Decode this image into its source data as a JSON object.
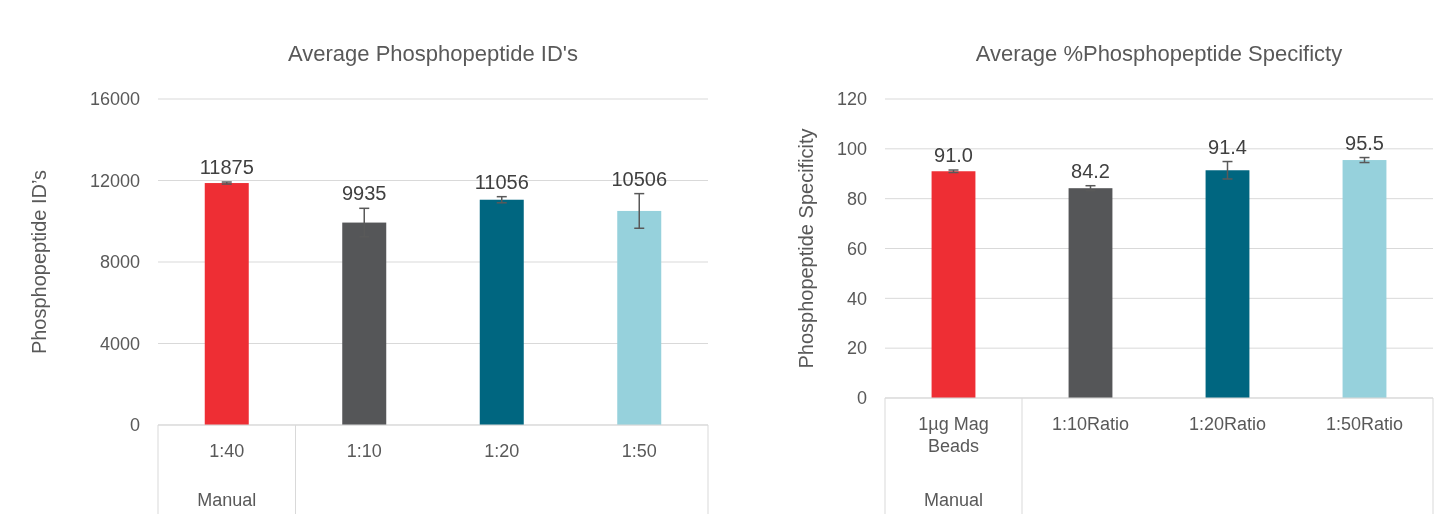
{
  "chart_data": [
    {
      "type": "bar",
      "title": "Average Phosphopeptide ID's",
      "ylabel": "Phosphopeptide ID’s",
      "categories": [
        "1:40",
        "1:10",
        "1:20",
        "1:50"
      ],
      "values": [
        11875,
        9935,
        11056,
        10506
      ],
      "colors": [
        "#ee2e34",
        "#555658",
        "#006680",
        "#96d1dc"
      ],
      "errors": [
        50,
        700,
        150,
        850
      ],
      "data_labels": true,
      "ylim": [
        0,
        16000
      ],
      "yticks": [
        0,
        4000,
        8000,
        12000,
        16000
      ],
      "grid": "y",
      "annotations": [
        "Manual"
      ]
    },
    {
      "type": "bar",
      "title": "Average %Phosphopeptide Specificty",
      "ylabel": "Phosphopeptide Specificity",
      "categories": [
        "1µg Mag Beads",
        "1:10Ratio",
        "1:20Ratio",
        "1:50Ratio"
      ],
      "values": [
        91.0,
        84.2,
        91.4,
        95.5
      ],
      "colors": [
        "#ee2e34",
        "#555658",
        "#006680",
        "#96d1dc"
      ],
      "errors": [
        0.5,
        1,
        3.5,
        1
      ],
      "value_labels": [
        "91.0",
        "84.2",
        "91.4",
        "95.5"
      ],
      "ylim": [
        0,
        120
      ],
      "yticks": [
        0,
        20,
        40,
        60,
        80,
        100,
        120
      ],
      "grid": "y",
      "annotations": [
        "Manual"
      ]
    }
  ]
}
